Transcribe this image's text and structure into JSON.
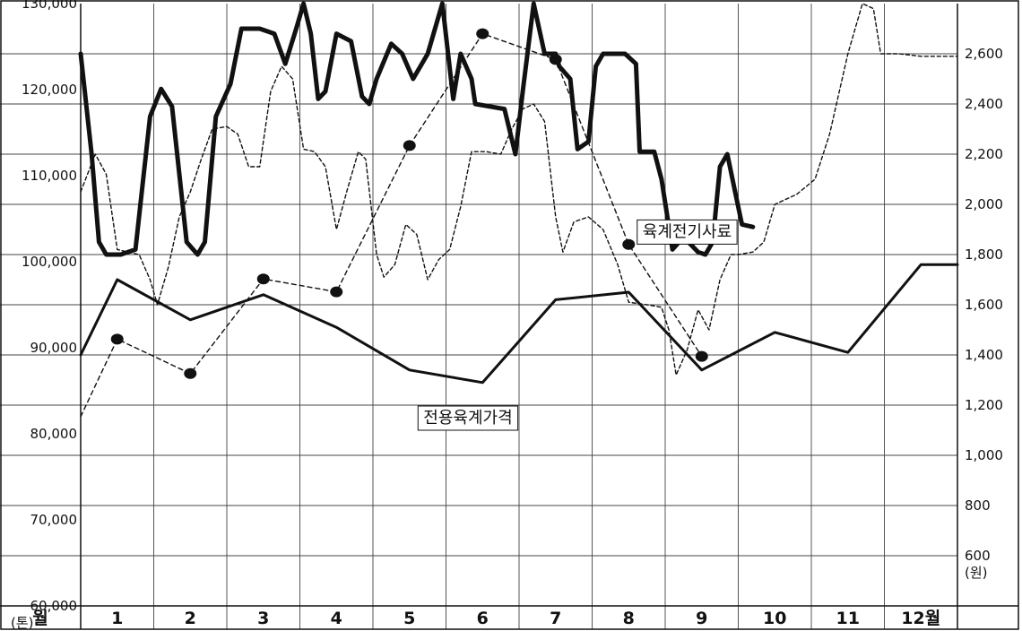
{
  "chart_data": {
    "type": "line",
    "title": "",
    "x_axis": {
      "label": "월",
      "ticks": [
        "1",
        "2",
        "3",
        "4",
        "5",
        "6",
        "7",
        "8",
        "9",
        "10",
        "11",
        "12월"
      ],
      "range": [
        0.0,
        12.0
      ]
    },
    "left_axis": {
      "unit": "(톤)",
      "ticks": [
        60000,
        70000,
        80000,
        90000,
        100000,
        110000,
        120000,
        130000
      ],
      "tick_labels": [
        "60,000",
        "70,000",
        "80,000",
        "90,000",
        "100,000",
        "110,000",
        "120,000",
        "130,000"
      ],
      "range": [
        60000,
        130000
      ]
    },
    "right_axis": {
      "unit": "(원)",
      "ticks": [
        600,
        800,
        1000,
        1200,
        1400,
        1600,
        1800,
        2000,
        2200,
        2400,
        2600
      ],
      "tick_labels": [
        "600",
        "800",
        "1,000",
        "1,200",
        "1,400",
        "1,600",
        "1,800",
        "2,000",
        "2,200",
        "2,400",
        "2,600"
      ],
      "range": [
        400,
        2800
      ]
    },
    "grid": true,
    "annotations": [
      {
        "text": "육계전기사료",
        "x": 8.3,
        "y_axis": "left",
        "y": 103500
      },
      {
        "text": "전용육계가격",
        "x": 5.3,
        "y_axis": "right",
        "y": 1150
      }
    ],
    "series": [
      {
        "name": "육계전기사료",
        "axis": "left",
        "style": "dashed-with-markers",
        "points": [
          [
            0.0,
            82000
          ],
          [
            0.5,
            91000
          ],
          [
            1.5,
            87000
          ],
          [
            2.5,
            98000
          ],
          [
            3.5,
            96500
          ],
          [
            4.5,
            113500
          ],
          [
            5.5,
            126500
          ],
          [
            6.5,
            123500
          ],
          [
            7.5,
            102000
          ],
          [
            8.5,
            89000
          ]
        ],
        "marker_points": [
          0.5,
          1.5,
          2.5,
          3.5,
          4.5,
          5.5,
          6.5,
          7.5,
          8.5
        ]
      },
      {
        "axis": "right",
        "style": "thick-solid",
        "points": [
          [
            0.0,
            2600
          ],
          [
            0.15,
            2200
          ],
          [
            0.25,
            1850
          ],
          [
            0.35,
            1800
          ],
          [
            0.55,
            1800
          ],
          [
            0.75,
            1820
          ],
          [
            0.95,
            2350
          ],
          [
            1.1,
            2460
          ],
          [
            1.25,
            2390
          ],
          [
            1.45,
            1850
          ],
          [
            1.6,
            1800
          ],
          [
            1.7,
            1850
          ],
          [
            1.85,
            2350
          ],
          [
            2.05,
            2480
          ],
          [
            2.2,
            2700
          ],
          [
            2.45,
            2700
          ],
          [
            2.65,
            2680
          ],
          [
            2.8,
            2560
          ],
          [
            2.95,
            2700
          ],
          [
            3.05,
            2800
          ],
          [
            3.15,
            2680
          ],
          [
            3.25,
            2420
          ],
          [
            3.35,
            2450
          ],
          [
            3.5,
            2680
          ],
          [
            3.7,
            2650
          ],
          [
            3.85,
            2430
          ],
          [
            3.95,
            2400
          ],
          [
            4.05,
            2500
          ],
          [
            4.25,
            2640
          ],
          [
            4.4,
            2600
          ],
          [
            4.55,
            2500
          ],
          [
            4.75,
            2600
          ],
          [
            4.95,
            2800
          ],
          [
            5.1,
            2420
          ],
          [
            5.2,
            2600
          ],
          [
            5.35,
            2500
          ],
          [
            5.4,
            2400
          ],
          [
            5.8,
            2380
          ],
          [
            5.95,
            2200
          ],
          [
            6.05,
            2450
          ],
          [
            6.2,
            2800
          ],
          [
            6.35,
            2600
          ],
          [
            6.5,
            2600
          ],
          [
            6.55,
            2550
          ],
          [
            6.7,
            2500
          ],
          [
            6.8,
            2220
          ],
          [
            6.95,
            2250
          ],
          [
            7.05,
            2550
          ],
          [
            7.15,
            2600
          ],
          [
            7.45,
            2600
          ],
          [
            7.6,
            2560
          ],
          [
            7.65,
            2210
          ],
          [
            7.85,
            2210
          ],
          [
            7.95,
            2100
          ],
          [
            8.1,
            1820
          ],
          [
            8.25,
            1870
          ],
          [
            8.45,
            1810
          ],
          [
            8.55,
            1800
          ],
          [
            8.65,
            1850
          ],
          [
            8.75,
            2150
          ],
          [
            8.85,
            2200
          ],
          [
            8.95,
            2060
          ],
          [
            9.05,
            1920
          ],
          [
            9.2,
            1910
          ]
        ]
      },
      {
        "axis": "right",
        "style": "thin-dashed",
        "points": [
          [
            0.0,
            2050
          ],
          [
            0.2,
            2200
          ],
          [
            0.35,
            2120
          ],
          [
            0.5,
            1820
          ],
          [
            0.65,
            1810
          ],
          [
            0.8,
            1800
          ],
          [
            0.95,
            1700
          ],
          [
            1.05,
            1600
          ],
          [
            1.2,
            1750
          ],
          [
            1.35,
            1950
          ],
          [
            1.5,
            2050
          ],
          [
            1.65,
            2180
          ],
          [
            1.8,
            2300
          ],
          [
            2.0,
            2310
          ],
          [
            2.15,
            2280
          ],
          [
            2.3,
            2150
          ],
          [
            2.45,
            2150
          ],
          [
            2.6,
            2450
          ],
          [
            2.75,
            2550
          ],
          [
            2.9,
            2500
          ],
          [
            3.05,
            2220
          ],
          [
            3.2,
            2210
          ],
          [
            3.35,
            2150
          ],
          [
            3.5,
            1900
          ],
          [
            3.65,
            2060
          ],
          [
            3.8,
            2210
          ],
          [
            3.9,
            2180
          ],
          [
            4.05,
            1800
          ],
          [
            4.15,
            1710
          ],
          [
            4.3,
            1760
          ],
          [
            4.45,
            1920
          ],
          [
            4.6,
            1880
          ],
          [
            4.75,
            1700
          ],
          [
            4.9,
            1780
          ],
          [
            5.05,
            1820
          ],
          [
            5.2,
            1990
          ],
          [
            5.35,
            2210
          ],
          [
            5.55,
            2210
          ],
          [
            5.75,
            2200
          ],
          [
            5.9,
            2300
          ],
          [
            6.05,
            2380
          ],
          [
            6.2,
            2400
          ],
          [
            6.35,
            2330
          ],
          [
            6.5,
            1950
          ],
          [
            6.6,
            1810
          ],
          [
            6.75,
            1930
          ],
          [
            6.95,
            1950
          ],
          [
            7.15,
            1900
          ],
          [
            7.35,
            1760
          ],
          [
            7.5,
            1610
          ],
          [
            7.75,
            1600
          ],
          [
            7.95,
            1590
          ],
          [
            8.05,
            1500
          ],
          [
            8.15,
            1320
          ],
          [
            8.3,
            1420
          ],
          [
            8.45,
            1580
          ],
          [
            8.6,
            1500
          ],
          [
            8.75,
            1700
          ],
          [
            8.9,
            1800
          ],
          [
            9.0,
            1800
          ],
          [
            9.2,
            1810
          ],
          [
            9.35,
            1850
          ],
          [
            9.5,
            2000
          ],
          [
            9.8,
            2040
          ],
          [
            10.05,
            2100
          ],
          [
            10.25,
            2280
          ],
          [
            10.5,
            2600
          ],
          [
            10.7,
            2800
          ],
          [
            10.85,
            2780
          ],
          [
            10.95,
            2600
          ],
          [
            11.2,
            2600
          ],
          [
            11.5,
            2590
          ],
          [
            12.0,
            2590
          ]
        ]
      },
      {
        "name": "전용육계가격",
        "axis": "right",
        "style": "solid",
        "points": [
          [
            0.0,
            1400
          ],
          [
            0.5,
            1700
          ],
          [
            1.5,
            1540
          ],
          [
            2.5,
            1640
          ],
          [
            3.5,
            1510
          ],
          [
            4.5,
            1340
          ],
          [
            5.5,
            1290
          ],
          [
            6.5,
            1620
          ],
          [
            7.5,
            1650
          ],
          [
            8.5,
            1340
          ],
          [
            9.5,
            1490
          ],
          [
            10.5,
            1410
          ],
          [
            11.5,
            1760
          ],
          [
            12.0,
            1760
          ]
        ]
      }
    ]
  }
}
